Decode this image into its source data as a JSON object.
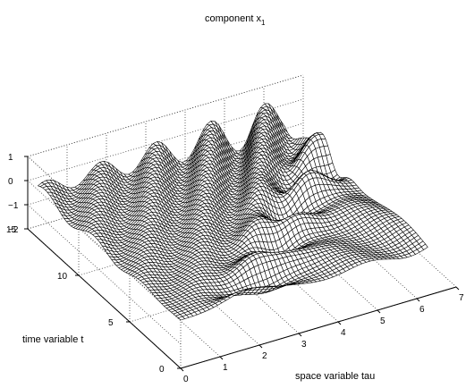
{
  "chart_data": {
    "type": "surface",
    "title": "component x",
    "title_subscript": "1",
    "xlabel": "space variable tau",
    "ylabel": "time variable t",
    "zlabel": "",
    "x_ticks": [
      "0",
      "1",
      "2",
      "3",
      "4",
      "5",
      "6",
      "7"
    ],
    "y_ticks": [
      "0",
      "5",
      "10",
      "15"
    ],
    "z_ticks": [
      "1",
      "0",
      "−1",
      "−2"
    ],
    "xlim": [
      0,
      7
    ],
    "ylim": [
      0,
      15
    ],
    "zlim": [
      -2,
      1
    ],
    "grid": true,
    "mesh": {
      "x_range": [
        0,
        6.28
      ],
      "t_range": [
        0,
        14
      ],
      "x_steps": 60,
      "t_steps": 60,
      "description_values": {
        "initial_profile_near_t0": 0.0,
        "wave_front_amplitude": 1.0,
        "oscillation_amplitude_late_time": 0.9
      }
    }
  },
  "colors": {
    "background": "#ffffff",
    "mesh_fill": "#ffffff",
    "mesh_line": "#000000",
    "axis": "#000000",
    "grid": "#444444"
  }
}
